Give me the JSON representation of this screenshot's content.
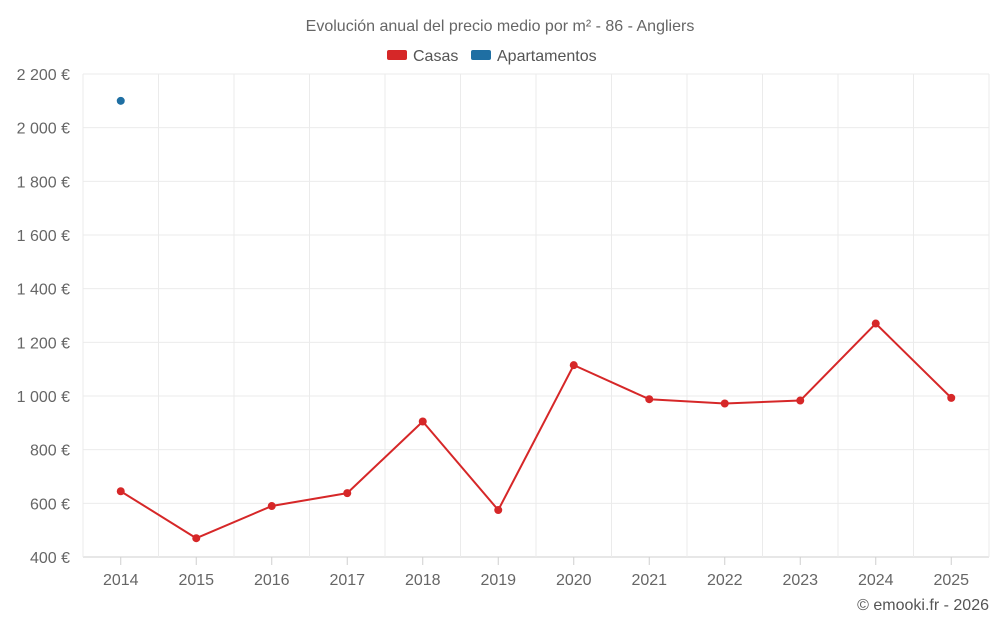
{
  "chart_data": {
    "type": "line",
    "title": "Evolución anual del precio medio por m² - 86 - Angliers",
    "categories": [
      "2014",
      "2015",
      "2016",
      "2017",
      "2018",
      "2019",
      "2020",
      "2021",
      "2022",
      "2023",
      "2024",
      "2025"
    ],
    "ylim": [
      400,
      2200
    ],
    "yticks": [
      400,
      600,
      800,
      1000,
      1200,
      1400,
      1600,
      1800,
      2000,
      2200
    ],
    "ytick_labels": [
      "400 €",
      "600 €",
      "800 €",
      "1 000 €",
      "1 200 €",
      "1 400 €",
      "1 600 €",
      "1 800 €",
      "2 000 €",
      "2 200 €"
    ],
    "legend_position": "top-center",
    "grid": true,
    "series": [
      {
        "name": "Casas",
        "color": "#d62728",
        "values": [
          645,
          470,
          590,
          638,
          905,
          575,
          1115,
          988,
          972,
          983,
          1270,
          993
        ]
      },
      {
        "name": "Apartamentos",
        "color": "#1f6fa3",
        "values": [
          2100,
          null,
          null,
          null,
          null,
          null,
          null,
          null,
          null,
          null,
          null,
          null
        ]
      }
    ],
    "credit": "© emooki.fr - 2026"
  }
}
